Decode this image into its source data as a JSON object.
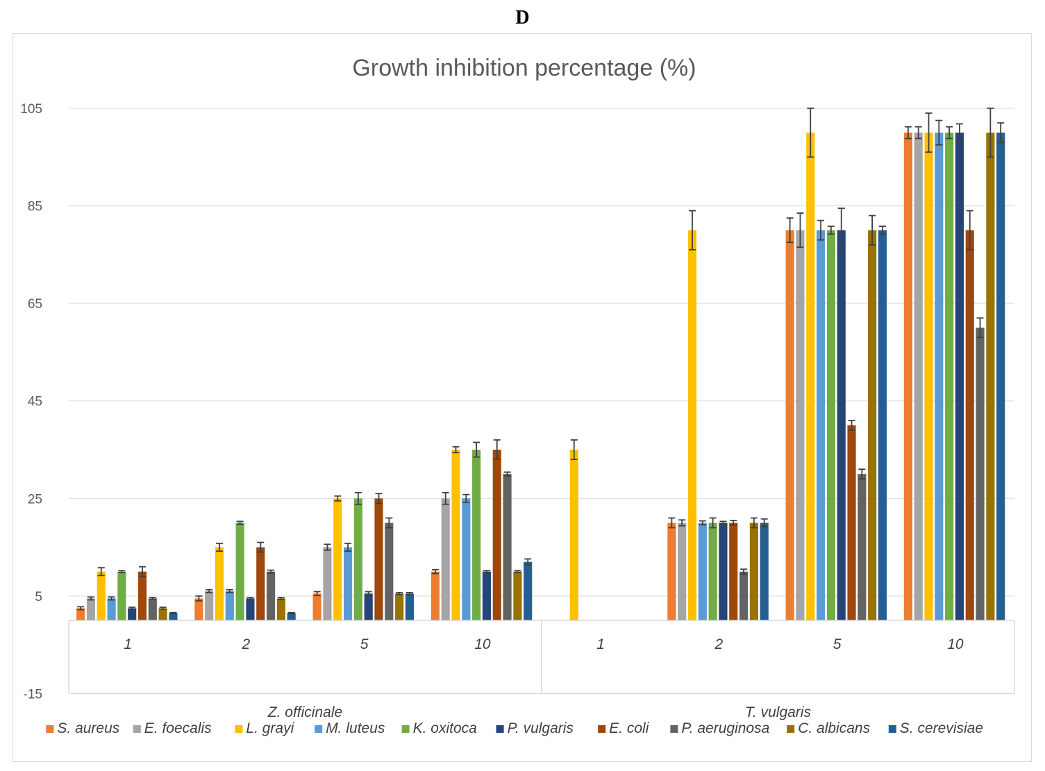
{
  "panel_label": "D",
  "chart_data": {
    "type": "bar",
    "title": "Growth inhibition percentage (%)",
    "xlabel": "",
    "ylabel": "",
    "ylim": [
      -15,
      105
    ],
    "yticks": [
      105,
      85,
      65,
      45,
      25,
      5,
      -15
    ],
    "grid": true,
    "legend_position": "bottom",
    "groups": [
      {
        "label": "Z. officinale",
        "categories": [
          "1",
          "2",
          "5",
          "10"
        ]
      },
      {
        "label": "T. vulgaris",
        "categories": [
          "1",
          "2",
          "5",
          "10"
        ]
      }
    ],
    "series": [
      {
        "name": "S. aureus",
        "color": "#ED7D31",
        "values": [
          2.5,
          4.5,
          5.5,
          10,
          0,
          20,
          80,
          100
        ],
        "errors": [
          0.3,
          0.5,
          0.4,
          0.4,
          0,
          1,
          2.5,
          1.2
        ]
      },
      {
        "name": "E. foecalis",
        "color": "#A5A5A5",
        "values": [
          4.5,
          6,
          15,
          25,
          0,
          20,
          80,
          100
        ],
        "errors": [
          0.3,
          0.3,
          0.6,
          1.2,
          0,
          0.6,
          3.5,
          1.2
        ]
      },
      {
        "name": "L. grayi",
        "color": "#FFC000",
        "values": [
          10,
          15,
          25,
          35,
          35,
          80,
          100,
          100
        ],
        "errors": [
          0.8,
          0.8,
          0.5,
          0.6,
          2,
          4,
          5,
          4
        ]
      },
      {
        "name": "M. luteus",
        "color": "#5B9BD5",
        "values": [
          4.5,
          6,
          15,
          25,
          0,
          20,
          80,
          100
        ],
        "errors": [
          0.3,
          0.3,
          0.8,
          0.8,
          0,
          0.4,
          2,
          2.5
        ]
      },
      {
        "name": "K. oxitoca",
        "color": "#70AD47",
        "values": [
          10,
          20,
          25,
          35,
          0,
          20,
          80,
          100
        ],
        "errors": [
          0.2,
          0.3,
          1.2,
          1.5,
          0,
          1,
          0.8,
          1.2
        ]
      },
      {
        "name": "P. vulgaris",
        "color": "#264478",
        "values": [
          2.5,
          4.5,
          5.5,
          10,
          0,
          20,
          80,
          100
        ],
        "errors": [
          0.2,
          0.2,
          0.4,
          0.2,
          0,
          0.3,
          4.5,
          1.8
        ]
      },
      {
        "name": "E. coli",
        "color": "#9E480E",
        "values": [
          10,
          15,
          25,
          35,
          0,
          20,
          40,
          80
        ],
        "errors": [
          1,
          1,
          1,
          2,
          0,
          0.5,
          1,
          4
        ]
      },
      {
        "name": "P. aeruginosa",
        "color": "#636363",
        "values": [
          4.5,
          10,
          20,
          30,
          0,
          10,
          30,
          60
        ],
        "errors": [
          0.2,
          0.3,
          1,
          0.4,
          0,
          0.5,
          1,
          2
        ]
      },
      {
        "name": "C. albicans",
        "color": "#997300",
        "values": [
          2.5,
          4.5,
          5.5,
          10,
          0,
          20,
          80,
          100
        ],
        "errors": [
          0.2,
          0.2,
          0.2,
          0.2,
          0,
          1,
          3,
          5
        ]
      },
      {
        "name": "S. cerevisiae",
        "color": "#255E91",
        "values": [
          1.5,
          1.5,
          5.5,
          12,
          0,
          20,
          80,
          100
        ],
        "errors": [
          0.1,
          0.1,
          0.2,
          0.6,
          0,
          0.8,
          0.8,
          2
        ]
      }
    ]
  }
}
